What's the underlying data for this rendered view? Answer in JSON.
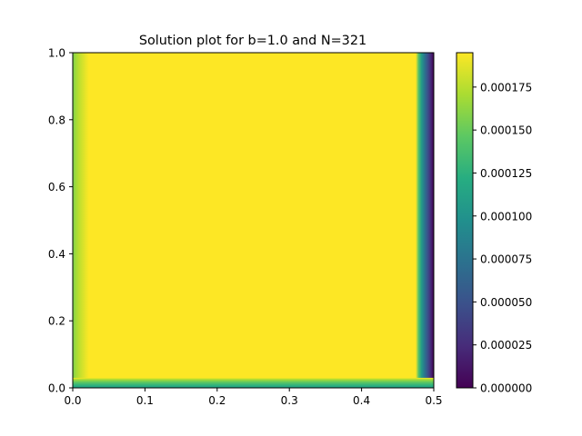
{
  "chart_data": {
    "type": "heatmap",
    "title": "Solution plot for b=1.0 and N=321",
    "xlabel": "",
    "ylabel": "",
    "xlim": [
      0.0,
      0.5
    ],
    "ylim": [
      0.0,
      1.0
    ],
    "x_ticks": [
      "0.0",
      "0.1",
      "0.2",
      "0.3",
      "0.4",
      "0.5"
    ],
    "y_ticks": [
      "0.0",
      "0.2",
      "0.4",
      "0.6",
      "0.8",
      "1.0"
    ],
    "grid": false,
    "colorbar": {
      "colormap": "viridis",
      "vmin": 0.0,
      "vmax": 0.000195,
      "ticks": [
        "0.000000",
        "0.000025",
        "0.000050",
        "0.000075",
        "0.000100",
        "0.000125",
        "0.000150",
        "0.000175"
      ]
    },
    "field": {
      "interior_value": 0.000195,
      "left_boundary_value": 0.000155,
      "bottom_boundary_value": 0.00011,
      "right_boundary_value": 0.0,
      "top_boundary_value": 0.000195
    }
  }
}
